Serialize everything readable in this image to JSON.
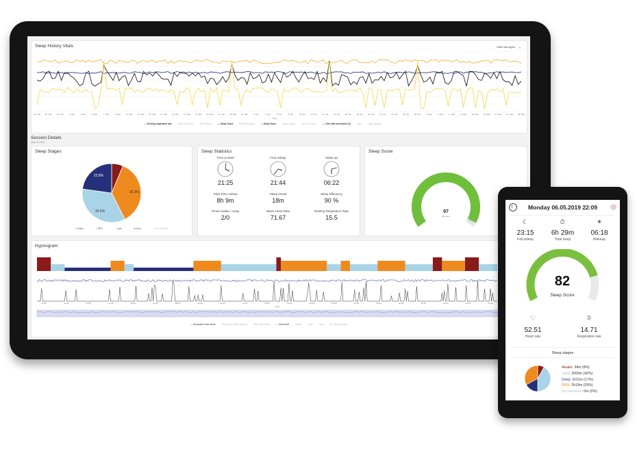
{
  "dashboard": {
    "vitals": {
      "title": "Sleep History Vitals",
      "hide_label": "Hide vital signs",
      "x_axis_label": "Date",
      "dates": [
        "23. Feb",
        "25. Feb",
        "27. Feb",
        "1. Mar",
        "3. Mar",
        "5. Mar",
        "7. Mar",
        "9. Mar",
        "11. Mar",
        "13. Mar",
        "15. Mar",
        "17. Mar",
        "19. Mar",
        "21. Mar",
        "23. Mar",
        "25. Mar",
        "27. Mar",
        "29. Mar",
        "31. Mar",
        "2. Apr",
        "4. Apr",
        "6. Apr",
        "8. Apr",
        "10. Apr",
        "12. Apr",
        "14. Apr",
        "16. Apr",
        "18. Apr",
        "20. Apr",
        "22. Apr",
        "24. Apr",
        "26. Apr",
        "28. Apr",
        "30. Apr",
        "2. May",
        "4. May",
        "6. May",
        "8. May",
        "10. May",
        "12. May",
        "14. May",
        "16. May",
        "18. May"
      ],
      "legend": [
        {
          "label": "Resting respiration rate",
          "color": "#2b3a8c",
          "active": true
        },
        {
          "label": "Mean heart rate",
          "color": "#cccccc",
          "active": false
        },
        {
          "label": "Time asleep",
          "color": "#cccccc",
          "active": false
        },
        {
          "label": "Sleep Onset",
          "color": "#f5d442",
          "active": true
        },
        {
          "label": "Sleep Efficiency",
          "color": "#cccccc",
          "active": false
        },
        {
          "label": "Sleep Score",
          "color": "#f5a623",
          "active": true
        },
        {
          "label": "Times awake",
          "color": "#cccccc",
          "active": false
        },
        {
          "label": "Time out of bed",
          "color": "#cccccc",
          "active": false
        },
        {
          "label": "Time with movement (%)",
          "color": "#222222",
          "active": true
        },
        {
          "label": "Light",
          "color": "#cccccc",
          "active": false
        },
        {
          "label": "Light duration",
          "color": "#cccccc",
          "active": false
        }
      ]
    },
    "session": {
      "title": "Session Details",
      "date": "May 11 2019"
    },
    "sleep_stages": {
      "title": "Sleep Stages",
      "slices": [
        {
          "label": "Wake",
          "value": 6.3,
          "color": "#8b1a1a"
        },
        {
          "label": "REM",
          "value": 36.3,
          "color": "#ef8a1f"
        },
        {
          "label": "Light",
          "value": 34.6,
          "color": "#a9d4e8"
        },
        {
          "label": "Deep",
          "value": 22.8,
          "color": "#25307a"
        },
        {
          "label": "No Presence",
          "value": 0,
          "color": "#dddddd"
        }
      ],
      "pct_rem": "36.3%",
      "pct_light": "34.6%",
      "pct_deep": "22.8%",
      "pct_wake": "6.3%"
    },
    "sleep_statistics": {
      "title": "Sleep Statistics",
      "items": [
        {
          "label": "Time at Start",
          "value": "21:25"
        },
        {
          "label": "First Asleep",
          "value": "21:44"
        },
        {
          "label": "Wake-up",
          "value": "06:22"
        },
        {
          "label": "Total Time Asleep",
          "value": "8h 9m"
        },
        {
          "label": "Sleep Onset",
          "value": "18m"
        },
        {
          "label": "Sleep Efficiency",
          "value": "90 %"
        },
        {
          "label": "Times Awake / Away",
          "value": "2/0"
        },
        {
          "label": "Mean Heart Rate",
          "value": "71.67"
        },
        {
          "label": "Resting Respiration Rate",
          "value": "15.5"
        }
      ]
    },
    "sleep_score": {
      "title": "Sleep Score",
      "value": "97",
      "sub": "Excellent",
      "max_label": "100",
      "score": 97,
      "color": "#6fbf3c"
    },
    "hypnogram": {
      "title": "Hypnogram",
      "help": "Help",
      "x_axis_label": "Date",
      "times": [
        "21:00",
        "21:30",
        "22:00",
        "22:30",
        "23:00",
        "23:30",
        "00:00",
        "00:30",
        "01:00",
        "01:30",
        "02:00",
        "02:30",
        "03:00",
        "03:30",
        "04:00",
        "04:30",
        "05:00",
        "05:30",
        "06:00",
        "06:30",
        "07:00"
      ],
      "legend": [
        {
          "label": "Respiration Rate Mean",
          "active": true
        },
        {
          "label": "Respiration Rate Variance",
          "active": false
        },
        {
          "label": "Heart Rate Mean",
          "active": false
        },
        {
          "label": "Movement",
          "active": true
        },
        {
          "label": "Awake",
          "active": false
        },
        {
          "label": "Light",
          "active": false
        },
        {
          "label": "Deep",
          "active": false
        },
        {
          "label": "No Sleep Session",
          "active": false
        }
      ]
    }
  },
  "phone": {
    "header": "Monday 06.05.2019 22:09",
    "back_icon": "chevron-left-icon",
    "stats": [
      {
        "icon": "moon-icon",
        "value": "23:15",
        "label": "Fall asleep"
      },
      {
        "icon": "stopwatch-icon",
        "value": "6h 29m",
        "label": "Total sleep"
      },
      {
        "icon": "sunrise-icon",
        "value": "06:18",
        "label": "Wakeup"
      }
    ],
    "score": {
      "value": "82",
      "label": "Sleep Score",
      "score": 82,
      "color": "#7bbf3f"
    },
    "vitals": [
      {
        "icon": "heart-icon",
        "value": "52.51",
        "label": "Heart rate"
      },
      {
        "icon": "lungs-icon",
        "value": "14.71",
        "label": "Respiration rate"
      }
    ],
    "stages_title": "Sleep stages",
    "stages": [
      {
        "name": "Awake",
        "text": ": 34m (8%)",
        "color": "#8b1a1a",
        "value": 8
      },
      {
        "name": "Light",
        "text": ": 2h59m (42%)",
        "color": "#a9d4e8",
        "value": 42
      },
      {
        "name": "Deep",
        "text": ": 1h11m (17%)",
        "color": "#25307a",
        "value": 17
      },
      {
        "name": "REM",
        "text": ": 2h18m (33%)",
        "color": "#ef8a1f",
        "value": 33
      },
      {
        "name": "No presence",
        "text": ": 0m (0%)",
        "color": "#cccccc",
        "value": 0
      }
    ]
  }
}
